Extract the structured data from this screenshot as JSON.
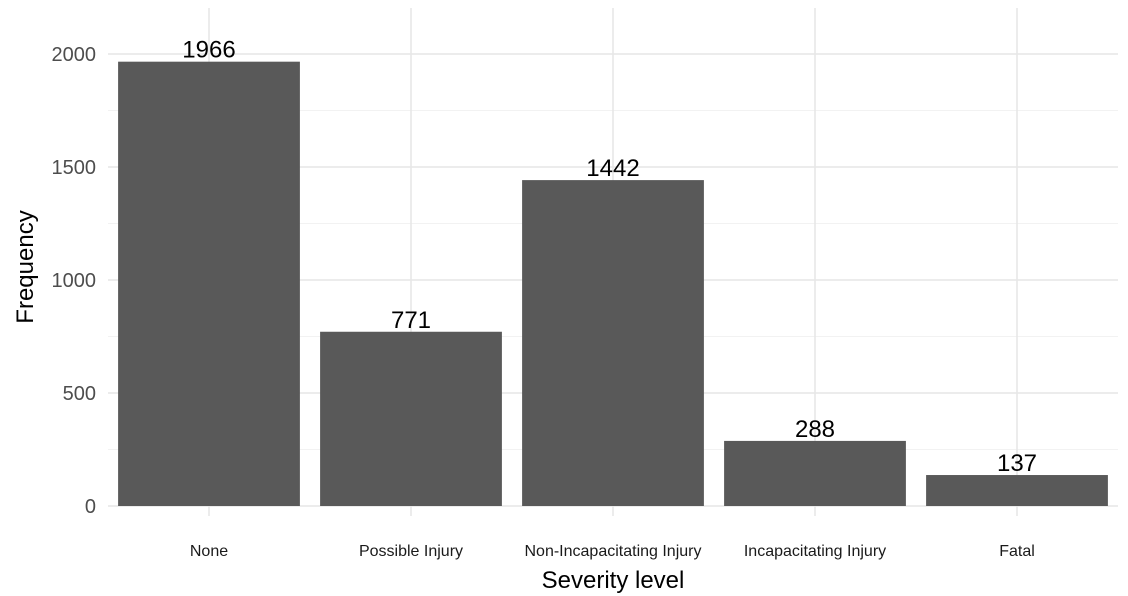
{
  "chart_data": {
    "type": "bar",
    "categories": [
      "None",
      "Possible Injury",
      "Non-Incapacitating Injury",
      "Incapacitating Injury",
      "Fatal"
    ],
    "values": [
      1966,
      771,
      1442,
      288,
      137
    ],
    "data_labels": [
      "1966",
      "771",
      "1442",
      "288",
      "137"
    ],
    "title": "",
    "xlabel": "Severity level",
    "ylabel": "Frequency",
    "ylim": [
      0,
      2200
    ],
    "yticks": [
      0,
      500,
      1000,
      1500,
      2000
    ],
    "ytick_labels": [
      "0",
      "500",
      "1000",
      "1500",
      "2000"
    ],
    "grid": true,
    "legend": "none",
    "bar_color": "#595959"
  }
}
